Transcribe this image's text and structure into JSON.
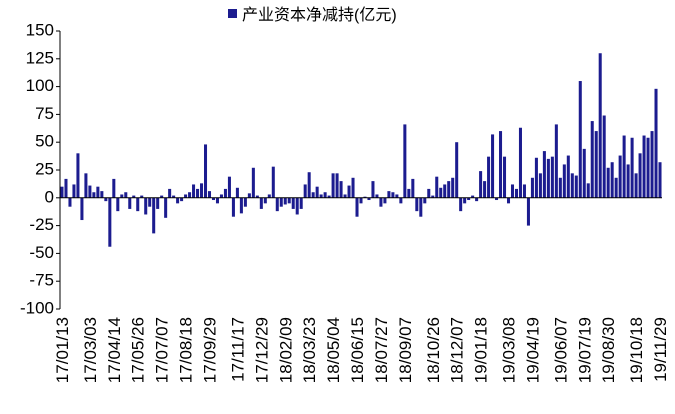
{
  "chart_data": {
    "type": "bar",
    "series": [
      {
        "name": "产业资本净减持(亿元)",
        "color": "#1c1c8f",
        "values": [
          10,
          17,
          -8,
          12,
          40,
          -20,
          22,
          11,
          5,
          10,
          6,
          -3,
          -44,
          17,
          -12,
          3,
          5,
          -10,
          2,
          -12,
          2,
          -15,
          -8,
          -32,
          -10,
          2,
          -18,
          8,
          2,
          -5,
          -3,
          3,
          5,
          12,
          8,
          13,
          48,
          6,
          -2,
          -5,
          3,
          8,
          19,
          -17,
          9,
          -14,
          -8,
          4,
          27,
          2,
          -10,
          -5,
          3,
          28,
          -12,
          -8,
          -6,
          -5,
          -10,
          -15,
          -10,
          12,
          23,
          5,
          10,
          3,
          5,
          2,
          22,
          22,
          15,
          3,
          11,
          18,
          -17,
          -5,
          1,
          -2,
          15,
          3,
          -8,
          -5,
          6,
          5,
          3,
          -5,
          66,
          8,
          17,
          -12,
          -17,
          -5,
          8,
          2,
          19,
          9,
          12,
          15,
          18,
          50,
          -12,
          -5,
          -2,
          2,
          -3,
          24,
          15,
          37,
          57,
          -2,
          60,
          37,
          -5,
          12,
          8,
          63,
          12,
          -25,
          18,
          36,
          22,
          42,
          35,
          37,
          66,
          18,
          30,
          38,
          22,
          20,
          105,
          44,
          13,
          69,
          60,
          130,
          74,
          27,
          32,
          18,
          38,
          56,
          30,
          54,
          22,
          40,
          56,
          54,
          60,
          98,
          32
        ]
      }
    ],
    "categories": [
      "17/01/13",
      null,
      null,
      null,
      null,
      null,
      null,
      "17/03/03",
      null,
      null,
      null,
      null,
      null,
      "17/04/14",
      null,
      null,
      null,
      null,
      null,
      "17/05/26",
      null,
      null,
      null,
      null,
      null,
      "17/07/07",
      null,
      null,
      null,
      null,
      null,
      "17/08/18",
      null,
      null,
      null,
      null,
      null,
      "17/09/29",
      null,
      null,
      null,
      null,
      null,
      null,
      "17/11/17",
      null,
      null,
      null,
      null,
      null,
      "17/12/29",
      null,
      null,
      null,
      null,
      null,
      "18/02/09",
      null,
      null,
      null,
      null,
      null,
      "18/03/23",
      null,
      null,
      null,
      null,
      null,
      "18/05/04",
      null,
      null,
      null,
      null,
      null,
      "18/06/15",
      null,
      null,
      null,
      null,
      null,
      "18/07/27",
      null,
      null,
      null,
      null,
      null,
      "18/09/07",
      null,
      null,
      null,
      null,
      null,
      null,
      "18/10/26",
      null,
      null,
      null,
      null,
      null,
      "18/12/07",
      null,
      null,
      null,
      null,
      null,
      "19/01/18",
      null,
      null,
      null,
      null,
      null,
      null,
      "19/03/08",
      null,
      null,
      null,
      null,
      null,
      "19/04/19",
      null,
      null,
      null,
      null,
      null,
      null,
      "19/06/07",
      null,
      null,
      null,
      null,
      null,
      "19/07/19",
      null,
      null,
      null,
      null,
      null,
      "19/08/30",
      null,
      null,
      null,
      null,
      null,
      null,
      "19/10/18",
      null,
      null,
      null,
      null,
      null,
      "19/11/29"
    ],
    "ylim": [
      -100,
      150
    ],
    "yticks": [
      -100,
      -75,
      -50,
      -25,
      0,
      25,
      50,
      75,
      100,
      125,
      150
    ],
    "legend": "top"
  }
}
